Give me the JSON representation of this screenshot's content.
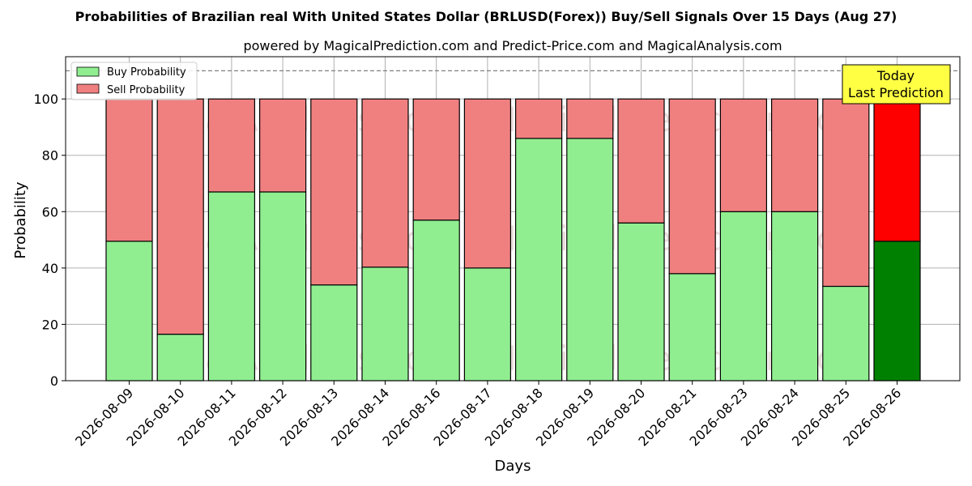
{
  "chart_data": {
    "type": "bar",
    "stacked": true,
    "title": "Probabilities of Brazilian real With United States Dollar (BRLUSD(Forex)) Buy/Sell Signals Over 15 Days (Aug 27)",
    "subtitle": "powered by MagicalPrediction.com and Predict-Price.com and MagicalAnalysis.com",
    "xlabel": "Days",
    "ylabel": "Probability",
    "ylim": [
      0,
      115
    ],
    "yticks": [
      0,
      20,
      40,
      60,
      80,
      100
    ],
    "grid": true,
    "legend_position": "top-left",
    "reference_line": 110,
    "categories": [
      "2026-08-09",
      "2026-08-10",
      "2026-08-11",
      "2026-08-12",
      "2026-08-13",
      "2026-08-14",
      "2026-08-16",
      "2026-08-17",
      "2026-08-18",
      "2026-08-19",
      "2026-08-20",
      "2026-08-21",
      "2026-08-23",
      "2026-08-24",
      "2026-08-25",
      "2026-08-26"
    ],
    "series": [
      {
        "name": "Buy Probability",
        "color": "#90ee90",
        "highlight_color": "#008000",
        "values": [
          49.5,
          16.5,
          67,
          67,
          34,
          40.3,
          57,
          40,
          86,
          86,
          56,
          38,
          60,
          60,
          33.5,
          49.5
        ]
      },
      {
        "name": "Sell Probability",
        "color": "#f08080",
        "highlight_color": "#ff0000",
        "values": [
          50.5,
          83.5,
          33,
          33,
          66,
          59.7,
          43,
          60,
          14,
          14,
          44,
          62,
          40,
          40,
          66.5,
          50.5
        ]
      }
    ],
    "highlight_index": 15,
    "annotation": {
      "line1": "Today",
      "line2": "Last Prediction",
      "color": "#ffff44"
    },
    "watermarks": [
      "MagicalAnalysis.com",
      "MagicalPrediction.com"
    ]
  }
}
